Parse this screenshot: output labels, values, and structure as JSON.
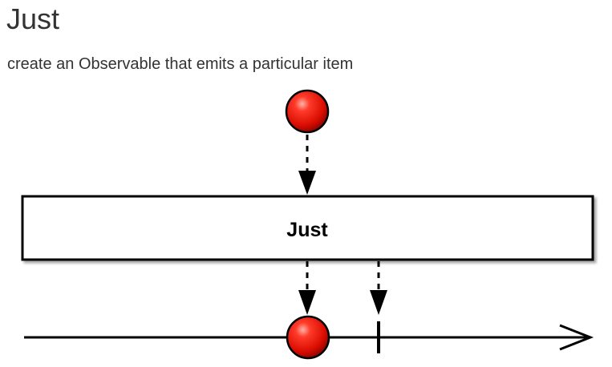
{
  "page": {
    "title": "Just",
    "subtitle": "create an Observable that emits a particular item"
  },
  "diagram": {
    "operator_label": "Just",
    "item_color": "#e8140c",
    "line_color": "#000000"
  }
}
